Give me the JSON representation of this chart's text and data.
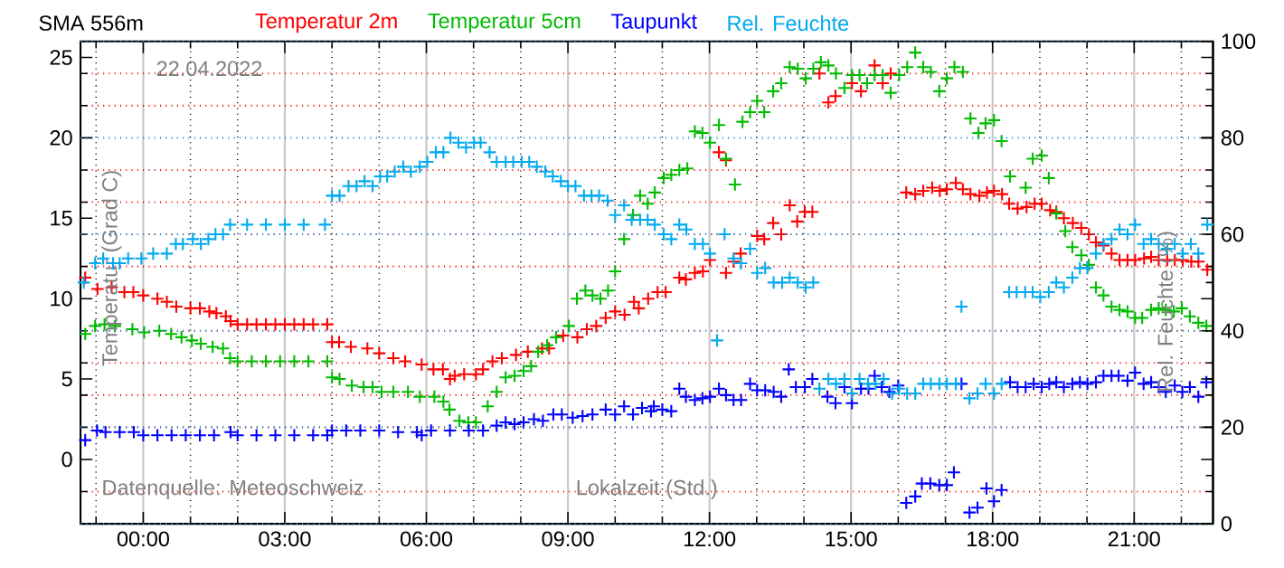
{
  "chart_data": {
    "type": "scatter",
    "title": "SMA 556m",
    "subtitle": "22.04.2022",
    "xlabel": "Lokalzeit (Std.)",
    "ylabel": "Temperatur (Grad C)",
    "y2label": "Rel. Feuchte (%)",
    "annotations": [
      "Datenquelle: Meteoschweiz"
    ],
    "legend": "top",
    "grid": true,
    "marker": "cross",
    "xlim": [
      -1.33,
      22.67
    ],
    "xticks": [
      {
        "value": -1,
        "label": null
      },
      {
        "value": 0,
        "label": "00:00"
      },
      {
        "value": 1,
        "label": null
      },
      {
        "value": 2,
        "label": null
      },
      {
        "value": 3,
        "label": "03:00"
      },
      {
        "value": 4,
        "label": null
      },
      {
        "value": 5,
        "label": null
      },
      {
        "value": 6,
        "label": "06:00"
      },
      {
        "value": 7,
        "label": null
      },
      {
        "value": 8,
        "label": null
      },
      {
        "value": 9,
        "label": "09:00"
      },
      {
        "value": 10,
        "label": null
      },
      {
        "value": 11,
        "label": null
      },
      {
        "value": 12,
        "label": "12:00"
      },
      {
        "value": 13,
        "label": null
      },
      {
        "value": 14,
        "label": null
      },
      {
        "value": 15,
        "label": "15:00"
      },
      {
        "value": 16,
        "label": null
      },
      {
        "value": 17,
        "label": null
      },
      {
        "value": 18,
        "label": "18:00"
      },
      {
        "value": 19,
        "label": null
      },
      {
        "value": 20,
        "label": null
      },
      {
        "value": 21,
        "label": "21:00"
      },
      {
        "value": 22,
        "label": null
      }
    ],
    "ylim": [
      -4,
      26
    ],
    "yticks": [
      0,
      5,
      10,
      15,
      20,
      25,
      {
        "value": -2,
        "label": null
      },
      {
        "value": 2,
        "label": null
      },
      {
        "value": 4,
        "label": null
      },
      {
        "value": 6,
        "label": null
      },
      {
        "value": 8,
        "label": null
      },
      {
        "value": 12,
        "label": null
      },
      {
        "value": 14,
        "label": null
      },
      {
        "value": 16,
        "label": null
      },
      {
        "value": 18,
        "label": null
      },
      {
        "value": 22,
        "label": null
      },
      {
        "value": 24,
        "label": null
      }
    ],
    "y2lim": [
      0,
      100
    ],
    "y2ticks": [
      0,
      20,
      40,
      60,
      80,
      100,
      {
        "value": 10,
        "label": null
      },
      {
        "value": 30,
        "label": null
      },
      {
        "value": 50,
        "label": null
      },
      {
        "value": 70,
        "label": null
      },
      {
        "value": 90,
        "label": null
      }
    ],
    "series": [
      {
        "name": "Temperatur 2m",
        "color": "#ff0000",
        "x": [
          -1.23,
          -0.97,
          -0.67,
          -0.4,
          -0.21,
          0,
          0.3,
          0.5,
          0.7,
          1.0,
          1.2,
          1.4,
          1.55,
          1.75,
          1.85,
          2.0,
          2.2,
          2.4,
          2.6,
          2.8,
          3.0,
          3.2,
          3.4,
          3.6,
          3.9,
          4.0,
          4.15,
          4.4,
          4.75,
          5.0,
          5.3,
          5.55,
          5.9,
          6.15,
          6.35,
          6.5,
          6.6,
          6.8,
          7.05,
          7.2,
          7.4,
          7.6,
          7.9,
          8.15,
          8.45,
          8.6,
          8.9,
          9.2,
          9.4,
          9.6,
          9.8,
          10.0,
          10.2,
          10.4,
          10.5,
          10.7,
          10.9,
          11.07,
          11.36,
          11.5,
          11.69,
          11.86,
          12.01,
          12.2,
          12.35,
          12.35,
          12.51,
          12.66,
          13.01,
          13.16,
          13.35,
          13.52,
          13.7,
          13.86,
          14.02,
          14.18,
          14.33,
          14.52,
          14.67,
          15.02,
          15.21,
          15.5,
          15.67,
          15.84,
          16.17,
          16.36,
          16.53,
          16.72,
          16.88,
          17.03,
          17.22,
          17.37,
          17.53,
          17.72,
          17.88,
          18.03,
          18.2,
          18.35,
          18.53,
          18.72,
          18.89,
          19.04,
          19.22,
          19.35,
          19.51,
          19.7,
          19.88,
          20.04,
          20.19,
          20.35,
          20.52,
          20.69,
          20.86,
          21.02,
          21.21,
          21.36,
          21.52,
          21.7,
          21.86,
          22.03,
          22.21,
          22.36,
          22.55
        ],
        "values": [
          11.3,
          10.6,
          10.7,
          10.4,
          10.4,
          10.2,
          10.0,
          9.8,
          9.5,
          9.4,
          9.4,
          9.2,
          9.1,
          8.9,
          8.6,
          8.4,
          8.4,
          8.4,
          8.4,
          8.4,
          8.4,
          8.4,
          8.4,
          8.4,
          8.4,
          7.3,
          7.3,
          7.0,
          6.9,
          6.6,
          6.3,
          6.1,
          5.9,
          5.6,
          5.6,
          5.0,
          5.2,
          5.3,
          5.3,
          5.6,
          6.1,
          6.3,
          6.5,
          6.7,
          6.9,
          6.9,
          7.7,
          7.6,
          8.1,
          8.3,
          8.8,
          9.2,
          9.0,
          9.8,
          9.4,
          10.0,
          10.4,
          10.4,
          11.3,
          11.2,
          11.6,
          11.7,
          12.4,
          19.1,
          18.6,
          11.6,
          12.3,
          12.8,
          13.9,
          13.7,
          14.7,
          14.0,
          15.8,
          14.8,
          15.4,
          15.4,
          24.0,
          22.2,
          22.6,
          23.4,
          22.9,
          24.5,
          23.4,
          24.0,
          16.6,
          16.5,
          16.7,
          16.9,
          16.7,
          16.8,
          17.2,
          16.8,
          16.5,
          16.4,
          16.6,
          16.7,
          16.5,
          15.9,
          15.6,
          15.7,
          15.9,
          15.9,
          15.5,
          15.4,
          15.0,
          14.7,
          14.4,
          14.0,
          13.5,
          13.3,
          12.8,
          12.4,
          12.4,
          12.4,
          12.5,
          12.6,
          12.4,
          12.4,
          12.4,
          12.4,
          12.3,
          12.3,
          11.8
        ]
      },
      {
        "name": "Temperatur 5cm",
        "color": "#00bb00",
        "x": [
          -1.23,
          -1.02,
          -0.82,
          -0.6,
          -0.23,
          0.02,
          0.34,
          0.59,
          0.81,
          1.03,
          1.22,
          1.47,
          1.69,
          1.84,
          2.0,
          2.3,
          2.6,
          2.9,
          3.2,
          3.5,
          3.9,
          4.0,
          4.16,
          4.42,
          4.67,
          4.86,
          5.05,
          5.3,
          5.61,
          5.86,
          6.17,
          6.36,
          6.49,
          6.7,
          6.89,
          7.05,
          7.3,
          7.49,
          7.68,
          7.87,
          8.06,
          8.22,
          8.37,
          8.56,
          8.75,
          9.02,
          9.19,
          9.37,
          9.52,
          9.69,
          9.85,
          10.0,
          10.19,
          10.38,
          10.53,
          10.69,
          10.84,
          11.03,
          11.19,
          11.36,
          11.53,
          11.69,
          11.85,
          12.01,
          12.2,
          12.35,
          12.54,
          12.7,
          12.86,
          13.01,
          13.16,
          13.35,
          13.52,
          13.7,
          13.87,
          14.04,
          14.2,
          14.36,
          14.52,
          14.68,
          14.86,
          15.02,
          15.18,
          15.34,
          15.5,
          15.67,
          15.84,
          16.02,
          16.19,
          16.36,
          16.53,
          16.69,
          16.87,
          17.03,
          17.19,
          17.37,
          17.53,
          17.7,
          17.85,
          18.03,
          18.19,
          18.37,
          18.7,
          18.85,
          19.04,
          19.19,
          19.35,
          19.54,
          19.69,
          19.88,
          20.04,
          20.19,
          20.35,
          20.52,
          20.69,
          20.86,
          21.02,
          21.17,
          21.36,
          21.52,
          21.67,
          21.84,
          22.01,
          22.18,
          22.36,
          22.53
        ],
        "values": [
          7.8,
          8.3,
          8.4,
          8.3,
          8.1,
          7.9,
          8.0,
          7.8,
          7.6,
          7.4,
          7.2,
          7.0,
          6.9,
          6.3,
          6.1,
          6.1,
          6.1,
          6.1,
          6.1,
          6.1,
          6.1,
          5.1,
          5.0,
          4.6,
          4.5,
          4.5,
          4.2,
          4.2,
          4.2,
          3.9,
          3.9,
          3.6,
          3.1,
          2.4,
          2.3,
          2.3,
          3.3,
          4.2,
          5.1,
          5.2,
          5.5,
          5.8,
          6.7,
          7.1,
          7.6,
          8.3,
          10.0,
          10.5,
          10.2,
          10.0,
          10.5,
          11.7,
          13.7,
          15.2,
          16.4,
          15.9,
          16.6,
          17.5,
          17.7,
          18.0,
          18.1,
          20.4,
          20.3,
          19.7,
          20.8,
          18.7,
          17.1,
          21.0,
          21.6,
          22.3,
          21.6,
          22.9,
          23.4,
          24.4,
          24.3,
          23.7,
          24.3,
          24.7,
          24.5,
          24.0,
          23.1,
          23.9,
          23.9,
          23.4,
          23.9,
          23.9,
          22.8,
          23.9,
          24.4,
          25.3,
          24.4,
          24.1,
          22.9,
          23.7,
          24.4,
          24.1,
          21.2,
          20.3,
          20.9,
          21.1,
          19.8,
          17.6,
          16.9,
          18.7,
          18.9,
          17.5,
          15.3,
          14.2,
          13.2,
          12.7,
          12.1,
          10.7,
          10.2,
          9.5,
          9.3,
          9.2,
          8.8,
          8.8,
          9.3,
          9.4,
          9.3,
          9.2,
          9.4,
          8.9,
          8.5,
          8.3
        ]
      },
      {
        "name": "Taupunkt",
        "color": "#0000ff",
        "x": [
          -1.23,
          -0.98,
          -0.8,
          -0.5,
          -0.2,
          0,
          0.3,
          0.6,
          0.9,
          1.2,
          1.5,
          1.85,
          2.0,
          2.4,
          2.8,
          3.2,
          3.6,
          3.9,
          4.0,
          4.3,
          4.6,
          5.0,
          5.4,
          5.8,
          5.9,
          6.1,
          6.5,
          6.9,
          7.2,
          7.49,
          7.68,
          7.87,
          8.06,
          8.28,
          8.47,
          8.69,
          8.87,
          9.1,
          9.31,
          9.52,
          9.8,
          10.0,
          10.19,
          10.38,
          10.57,
          10.76,
          10.82,
          11.0,
          11.19,
          11.36,
          11.5,
          11.69,
          11.85,
          12.01,
          12.2,
          12.35,
          12.51,
          12.67,
          12.86,
          13.01,
          13.18,
          13.36,
          13.52,
          13.68,
          13.83,
          14.02,
          14.18,
          14.5,
          14.67,
          14.86,
          15.02,
          15.21,
          15.37,
          15.5,
          15.65,
          15.81,
          16.0,
          16.17,
          16.36,
          16.5,
          16.68,
          16.87,
          17.03,
          17.18,
          17.34,
          17.51,
          17.68,
          17.87,
          18.03,
          18.19,
          18.37,
          18.53,
          18.7,
          18.87,
          19.04,
          19.2,
          19.35,
          19.51,
          19.69,
          19.85,
          20.01,
          20.19,
          20.35,
          20.52,
          20.67,
          20.86,
          21.02,
          21.2,
          21.36,
          21.52,
          21.67,
          21.86,
          22.02,
          22.18,
          22.36,
          22.53
        ],
        "values": [
          1.2,
          1.8,
          1.7,
          1.7,
          1.7,
          1.5,
          1.5,
          1.5,
          1.5,
          1.5,
          1.5,
          1.7,
          1.5,
          1.5,
          1.5,
          1.5,
          1.5,
          1.5,
          1.8,
          1.8,
          1.8,
          1.8,
          1.7,
          1.7,
          1.5,
          1.8,
          1.8,
          1.8,
          1.8,
          2.1,
          2.3,
          2.2,
          2.3,
          2.5,
          2.4,
          2.8,
          2.8,
          2.6,
          2.7,
          2.8,
          3.1,
          2.8,
          3.3,
          2.8,
          3.2,
          3.0,
          3.3,
          3.1,
          3.0,
          4.4,
          3.9,
          3.7,
          3.8,
          3.9,
          4.4,
          4.0,
          3.7,
          3.7,
          4.7,
          4.3,
          4.3,
          4.2,
          3.9,
          5.6,
          4.5,
          4.5,
          5.0,
          3.9,
          3.5,
          4.5,
          3.5,
          4.4,
          4.4,
          5.2,
          4.5,
          4.2,
          4.6,
          -2.7,
          -2.3,
          -1.5,
          -1.5,
          -1.6,
          -1.6,
          -0.8,
          4.7,
          -3.3,
          -3.0,
          -1.8,
          -2.6,
          -1.9,
          4.8,
          4.5,
          4.5,
          4.7,
          4.5,
          4.7,
          4.8,
          4.5,
          4.7,
          4.8,
          4.7,
          4.8,
          5.2,
          5.2,
          5.2,
          4.9,
          5.4,
          4.7,
          4.8,
          4.5,
          4.2,
          4.6,
          4.2,
          4.5,
          3.9,
          4.8
        ]
      },
      {
        "name": "Rel. Feuchte",
        "color": "#00aaee",
        "axis": "y2",
        "x": [
          -1.26,
          -1.02,
          -0.85,
          -0.64,
          -0.5,
          -0.32,
          -0.04,
          0.21,
          0.5,
          0.69,
          0.84,
          1.05,
          1.22,
          1.38,
          1.53,
          1.69,
          1.84,
          2.2,
          2.6,
          3.0,
          3.4,
          3.85,
          4.0,
          4.16,
          4.35,
          4.52,
          4.69,
          4.86,
          5.02,
          5.17,
          5.33,
          5.51,
          5.67,
          5.86,
          6.02,
          6.2,
          6.36,
          6.51,
          6.68,
          6.84,
          7.01,
          7.15,
          7.34,
          7.49,
          7.68,
          7.84,
          8.02,
          8.18,
          8.34,
          8.52,
          8.68,
          8.85,
          9.0,
          9.16,
          9.34,
          9.5,
          9.66,
          9.84,
          10.0,
          10.19,
          10.35,
          10.53,
          10.69,
          10.84,
          11.03,
          11.19,
          11.36,
          11.51,
          11.69,
          11.86,
          12.01,
          12.16,
          12.32,
          12.51,
          12.67,
          12.86,
          13.01,
          13.18,
          13.36,
          13.54,
          13.7,
          13.87,
          14.04,
          14.2,
          14.33,
          14.52,
          14.68,
          14.86,
          15.02,
          15.18,
          15.36,
          15.52,
          15.69,
          15.87,
          16.02,
          16.19,
          16.36,
          16.53,
          16.69,
          16.87,
          17.03,
          17.22,
          17.34,
          17.51,
          17.68,
          17.85,
          18.03,
          18.19,
          18.35,
          18.51,
          18.69,
          18.85,
          19.01,
          19.19,
          19.35,
          19.51,
          19.69,
          19.85,
          20.01,
          20.19,
          20.35,
          20.52,
          20.69,
          20.86,
          21.02,
          21.2,
          21.36,
          21.52,
          21.7,
          21.86,
          22.03,
          22.2,
          22.36,
          22.55
        ],
        "values": [
          50,
          54,
          55,
          54,
          54,
          55,
          55,
          56,
          56,
          58,
          58,
          59,
          58,
          59,
          60,
          60,
          62,
          62,
          62,
          62,
          62,
          62,
          68,
          68,
          70,
          70,
          71,
          70,
          72,
          72,
          73,
          74,
          73,
          74,
          75,
          77,
          77,
          80,
          79,
          78,
          79,
          79,
          77,
          75,
          75,
          75,
          75,
          75,
          74,
          73,
          72,
          71,
          70,
          70,
          68,
          68,
          68,
          67,
          64,
          66,
          63,
          63,
          63,
          62,
          60,
          59,
          62,
          61,
          58,
          58,
          56,
          38,
          60,
          55,
          54,
          57,
          52,
          53,
          50,
          50,
          51,
          50,
          49,
          50,
          28,
          30,
          29,
          30,
          27,
          30,
          29,
          29,
          30,
          27,
          28,
          27,
          27,
          29,
          29,
          29,
          29,
          29,
          45,
          26,
          27,
          29,
          27,
          29,
          48,
          48,
          48,
          48,
          47,
          48,
          50,
          49,
          51,
          53,
          53,
          56,
          58,
          59,
          61,
          60,
          62,
          58,
          59,
          58,
          57,
          58,
          56,
          58,
          56,
          62
        ]
      }
    ]
  }
}
